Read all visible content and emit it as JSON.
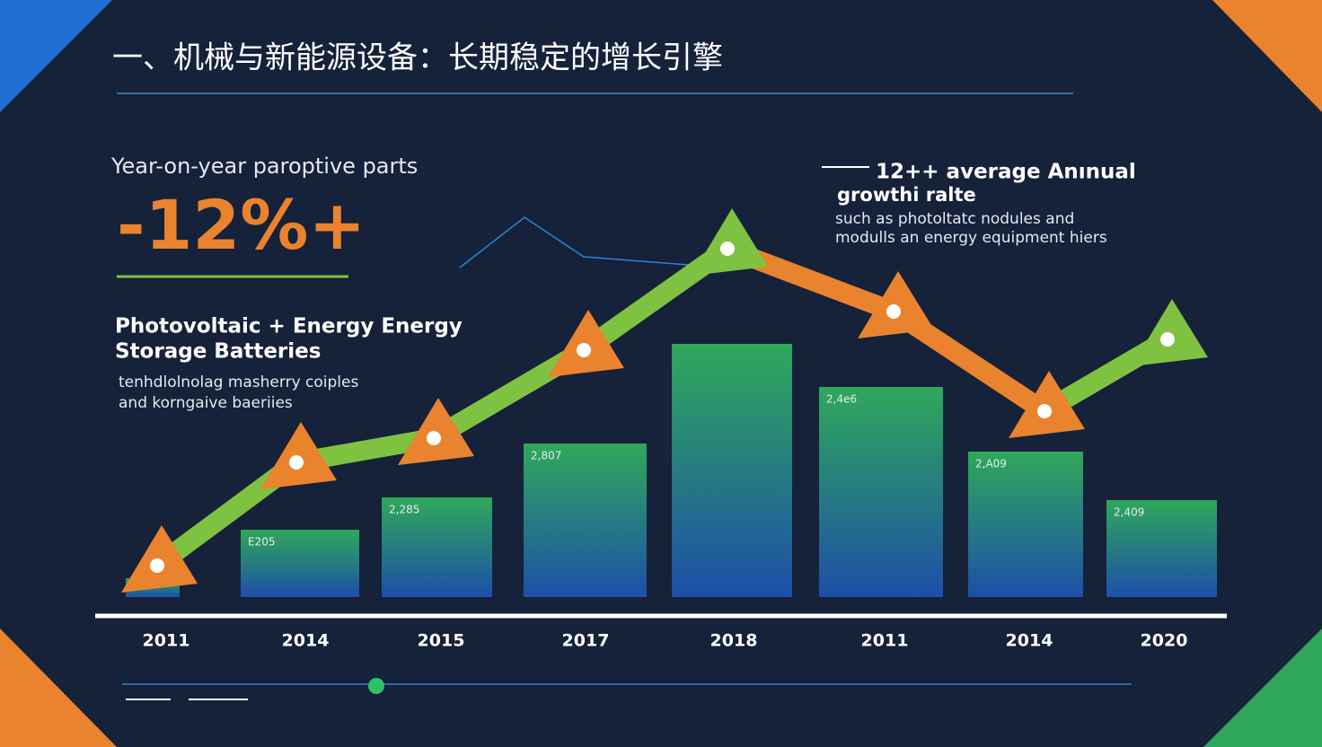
{
  "chart_data": {
    "type": "bar",
    "title": "一、机械与新能源设备：长期稳定的增长引擎",
    "left_panel": {
      "subtitle": "Year-on-year paroptive parts",
      "highlight": "-12%+",
      "heading": [
        "Photovoltaic  + Energy Energy",
        "Storage Batteries"
      ],
      "body": [
        "tenhdlolnolag masherry coiples",
        "and korngaive baeriies"
      ]
    },
    "right_panel": {
      "heading": [
        "12++ average Anınual",
        "growthi ralte"
      ],
      "body": [
        "such as photoltatc nodules and",
        "modulls an energy equipment hiers"
      ]
    },
    "categories": [
      "2011",
      "2014",
      "2015",
      "2017",
      "2018",
      "2011",
      "2014",
      "2020"
    ],
    "values": [
      7,
      25,
      37,
      57,
      94,
      78,
      54,
      36
    ],
    "bar_tags": [
      null,
      "E205",
      "2,285",
      "2,807",
      null,
      "2,4e6",
      "2,A09",
      "2,409"
    ],
    "ylim": [
      0,
      100
    ],
    "colors": {
      "bar_top": "#2fa85a",
      "bar_bottom": "#1d4fa8",
      "arrow_green": "#7fc241",
      "arrow_orange": "#e9832e"
    }
  }
}
